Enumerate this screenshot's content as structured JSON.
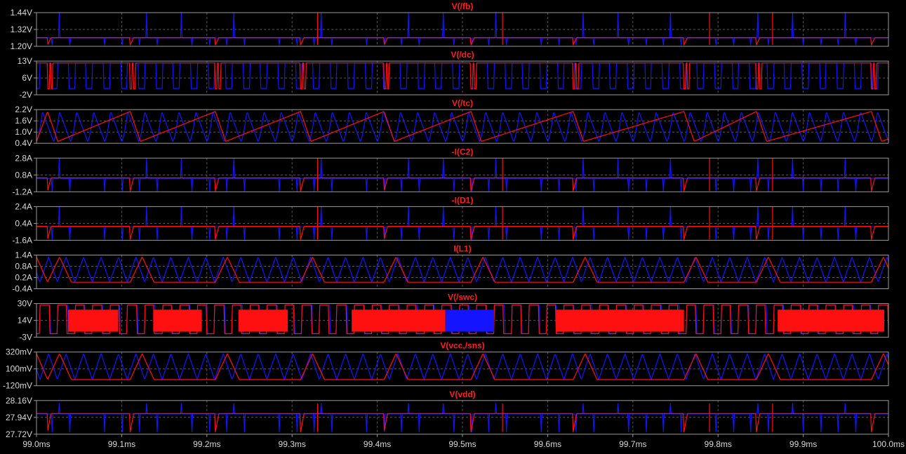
{
  "colors": {
    "background": "#000000",
    "grid": "#5a5a5a",
    "frame": "#9a9a9a",
    "label": "#d8d8d8",
    "title": "#ff2020",
    "trace_a": "#ff1010",
    "trace_b": "#1414ff"
  },
  "chart_data": {
    "type": "line",
    "grid": true,
    "x": {
      "min": 99.0,
      "max": 100.0,
      "unit": "ms",
      "ticks": [
        "99.0ms",
        "99.1ms",
        "99.2ms",
        "99.3ms",
        "99.4ms",
        "99.5ms",
        "99.6ms",
        "99.7ms",
        "99.8ms",
        "99.9ms",
        "100.0ms"
      ]
    },
    "panes": [
      {
        "title": "V(/fb)",
        "ylim": [
          1.2,
          1.44
        ],
        "yticks": [
          "1.44V",
          "1.32V",
          "1.20V"
        ],
        "kind": "spikes",
        "base": 1.262,
        "base_b": 1.26,
        "peak": 1.44,
        "dip": 1.21
      },
      {
        "title": "V(/dc)",
        "ylim": [
          -2,
          13
        ],
        "yticks": [
          "13V",
          "6V",
          "-2V"
        ],
        "kind": "square",
        "hi": 12.2,
        "lo": 0.6,
        "lo_b": 0.8
      },
      {
        "title": "V(/tc)",
        "ylim": [
          0.4,
          2.2
        ],
        "yticks": [
          "2.2V",
          "1.6V",
          "1.0V",
          "0.4V"
        ],
        "kind": "sawtooth",
        "hi": 2.1,
        "lo": 0.5
      },
      {
        "title": "-I(C2)",
        "ylim": [
          -1.2,
          2.8
        ],
        "yticks": [
          "2.8A",
          "0.8A",
          "-1.2A"
        ],
        "kind": "spikes",
        "base": 0.45,
        "base_b": 0.4,
        "peak": 2.8,
        "dip": -1.1
      },
      {
        "title": "-I(D1)",
        "ylim": [
          -1.6,
          2.4
        ],
        "yticks": [
          "2.4A",
          "0.4A",
          "-1.6A"
        ],
        "kind": "spikes",
        "base": 0.05,
        "base_b": 0.0,
        "peak": 2.4,
        "dip": -1.5
      },
      {
        "title": "I(L1)",
        "ylim": [
          -0.4,
          1.4
        ],
        "yticks": [
          "1.4A",
          "0.8A",
          "0.2A",
          "-0.4A"
        ],
        "kind": "triangle",
        "hi": 1.3,
        "lo": -0.05,
        "floor": -0.05
      },
      {
        "title": "V(/swc)",
        "ylim": [
          -3,
          30
        ],
        "yticks": [
          "30V",
          "14V",
          "-3V"
        ],
        "kind": "switch",
        "hi": 28.5,
        "lo": 0.5,
        "burst_red": [
          [
            99.037,
            99.096
          ],
          [
            99.137,
            99.194
          ],
          [
            99.237,
            99.295
          ],
          [
            99.37,
            99.48
          ],
          [
            99.61,
            99.76
          ],
          [
            99.87,
            99.995
          ]
        ],
        "burst_blue": [
          [
            99.48,
            99.537
          ]
        ]
      },
      {
        "title": "V(vcc,/sns)",
        "ylim": [
          -120,
          320
        ],
        "yticks": [
          "320mV",
          "100mV",
          "-120mV"
        ],
        "kind": "triangle",
        "hi": 300,
        "lo": -40,
        "floor": -40
      },
      {
        "title": "V(vdd)",
        "ylim": [
          27.72,
          28.16
        ],
        "yticks": [
          "28.16V",
          "27.94V",
          "27.72V"
        ],
        "kind": "spikes",
        "base": 27.99,
        "base_b": 27.985,
        "peak": 28.12,
        "dip": 27.75
      }
    ],
    "cycle_starts_a": [
      99.013,
      99.11,
      99.21,
      99.31,
      99.408,
      99.51,
      99.63,
      99.76,
      99.845,
      99.98
    ],
    "spikes_a": [
      99.33,
      99.547,
      99.79,
      99.864
    ],
    "events_b": [
      99.018,
      99.035,
      99.078,
      99.098,
      99.118,
      99.135,
      99.178,
      99.198,
      99.218,
      99.235,
      99.278,
      99.298,
      99.318,
      99.335,
      99.36,
      99.378,
      99.397,
      99.418,
      99.435,
      99.46,
      99.478,
      99.56,
      99.578,
      99.597,
      99.625,
      99.652,
      99.672,
      99.69,
      99.712,
      99.735,
      99.755,
      99.773,
      99.792,
      99.815,
      99.833,
      99.853,
      99.875,
      99.9,
      99.918,
      99.94,
      99.96,
      99.98,
      99.997
    ]
  }
}
